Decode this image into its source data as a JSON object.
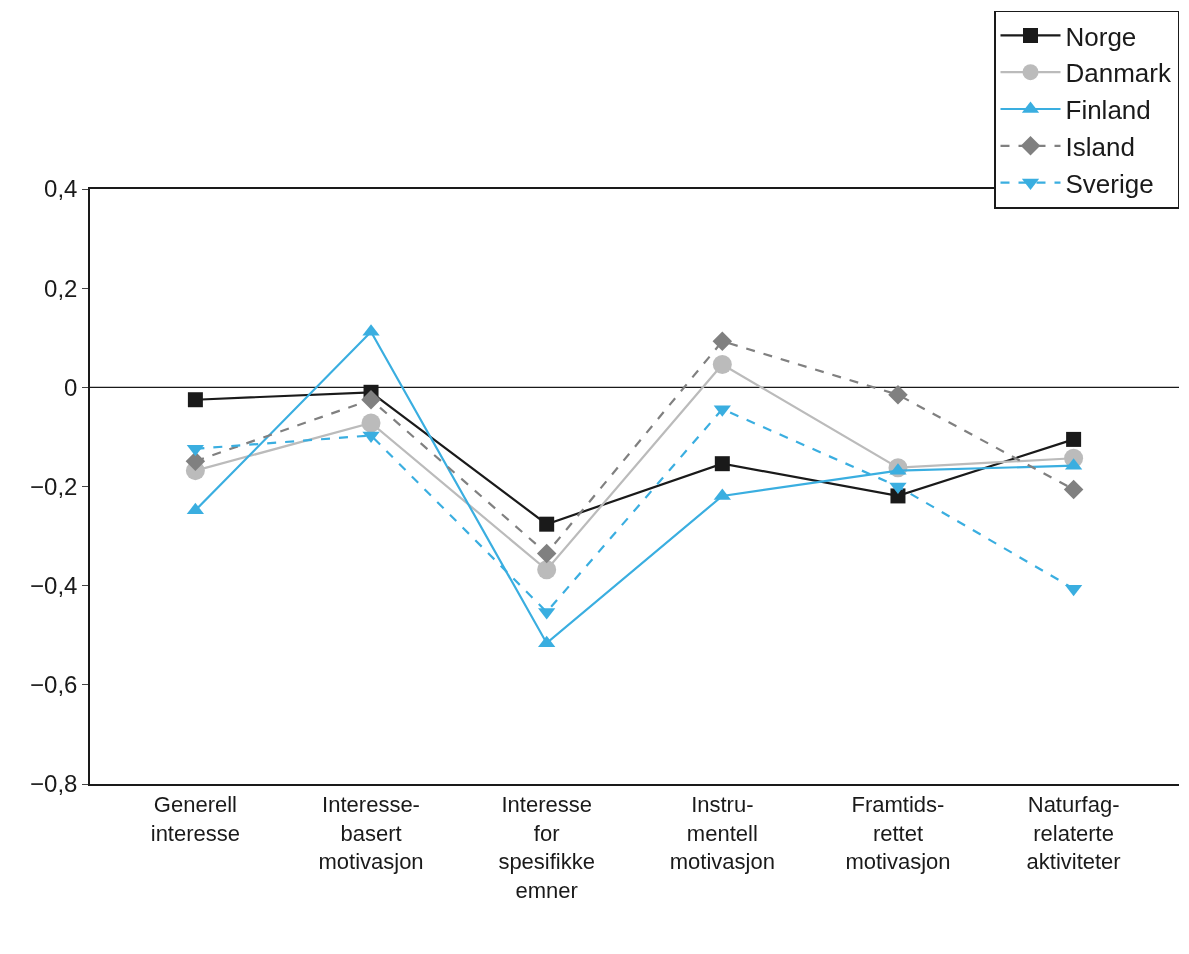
{
  "chart_data": {
    "type": "line",
    "categories": [
      "Generell interesse",
      "Interesse-basert motivasjon",
      "Interesse for spesifikke emner",
      "Instru-mentell motivasjon",
      "Framtids-rettet motivasjon",
      "Naturfag-relaterte aktiviteter"
    ],
    "series": [
      {
        "name": "Norge",
        "color": "#1a1a1a",
        "marker": "square",
        "line_style": "solid",
        "values": [
          -0.025,
          -0.01,
          -0.276,
          -0.154,
          -0.219,
          -0.105
        ]
      },
      {
        "name": "Danmark",
        "color": "#bbbbbb",
        "marker": "circle",
        "line_style": "solid",
        "values": [
          -0.168,
          -0.072,
          -0.368,
          0.046,
          -0.162,
          -0.143
        ]
      },
      {
        "name": "Finland",
        "color": "#3aaee0",
        "marker": "triangle",
        "line_style": "solid",
        "values": [
          -0.248,
          0.112,
          -0.516,
          -0.219,
          -0.168,
          -0.158
        ]
      },
      {
        "name": "Island",
        "color": "#808080",
        "marker": "diamond",
        "line_style": "dashed",
        "values": [
          -0.149,
          -0.025,
          -0.335,
          0.093,
          -0.015,
          -0.206
        ]
      },
      {
        "name": "Sverige",
        "color": "#3aaee0",
        "marker": "triangle-down",
        "line_style": "dashed",
        "values": [
          -0.124,
          -0.097,
          -0.453,
          -0.044,
          -0.2,
          -0.406
        ]
      }
    ],
    "ylim": [
      -0.8,
      0.4
    ],
    "yticks": [
      {
        "value": -0.8,
        "label": "−0,8"
      },
      {
        "value": -0.6,
        "label": "−0,6"
      },
      {
        "value": -0.4,
        "label": "−0,4"
      },
      {
        "value": -0.2,
        "label": "−0,2"
      },
      {
        "value": 0,
        "label": "0"
      },
      {
        "value": 0.2,
        "label": "0,2"
      },
      {
        "value": 0.4,
        "label": "0,4"
      }
    ],
    "ref_lines": [
      {
        "axis": "y",
        "value": 0,
        "color": "#1a1a1a"
      }
    ],
    "grid": false,
    "legend": "top right"
  }
}
